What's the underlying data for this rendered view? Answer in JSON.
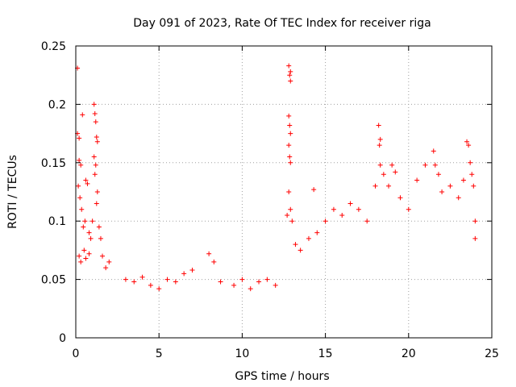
{
  "chart_data": {
    "type": "scatter",
    "title": "Day 091 of 2023, Rate Of TEC Index for receiver riga",
    "xlabel": "GPS time / hours",
    "ylabel": "ROTI / TECUs",
    "xlim": [
      0,
      25
    ],
    "ylim": [
      0,
      0.25
    ],
    "x_ticks": [
      "0",
      "5",
      "10",
      "15",
      "20",
      "25"
    ],
    "y_ticks": [
      "0",
      "0.05",
      "0.1",
      "0.15",
      "0.2",
      "0.25"
    ],
    "grid": true,
    "marker": "+",
    "color": "#ff0000",
    "series": [
      {
        "points": [
          [
            0.1,
            0.231
          ],
          [
            0.2,
            0.171
          ],
          [
            0.1,
            0.175
          ],
          [
            0.2,
            0.152
          ],
          [
            0.3,
            0.148
          ],
          [
            0.4,
            0.191
          ],
          [
            0.15,
            0.13
          ],
          [
            0.25,
            0.12
          ],
          [
            0.35,
            0.11
          ],
          [
            0.45,
            0.095
          ],
          [
            0.55,
            0.1
          ],
          [
            0.6,
            0.135
          ],
          [
            0.7,
            0.132
          ],
          [
            0.8,
            0.09
          ],
          [
            0.9,
            0.085
          ],
          [
            1.0,
            0.1
          ],
          [
            1.1,
            0.2
          ],
          [
            1.15,
            0.192
          ],
          [
            1.2,
            0.185
          ],
          [
            1.25,
            0.172
          ],
          [
            1.3,
            0.168
          ],
          [
            1.1,
            0.155
          ],
          [
            1.2,
            0.148
          ],
          [
            1.15,
            0.14
          ],
          [
            1.3,
            0.125
          ],
          [
            1.25,
            0.115
          ],
          [
            1.4,
            0.095
          ],
          [
            1.5,
            0.085
          ],
          [
            1.6,
            0.07
          ],
          [
            1.8,
            0.06
          ],
          [
            2.0,
            0.065
          ],
          [
            0.2,
            0.07
          ],
          [
            0.3,
            0.065
          ],
          [
            0.5,
            0.075
          ],
          [
            0.6,
            0.068
          ],
          [
            0.8,
            0.072
          ],
          [
            3.0,
            0.05
          ],
          [
            3.5,
            0.048
          ],
          [
            4.0,
            0.052
          ],
          [
            4.5,
            0.045
          ],
          [
            5.0,
            0.042
          ],
          [
            5.5,
            0.05
          ],
          [
            6.0,
            0.048
          ],
          [
            6.5,
            0.055
          ],
          [
            7.0,
            0.058
          ],
          [
            8.0,
            0.072
          ],
          [
            8.3,
            0.065
          ],
          [
            8.7,
            0.048
          ],
          [
            9.5,
            0.045
          ],
          [
            10.0,
            0.05
          ],
          [
            10.5,
            0.042
          ],
          [
            11.0,
            0.048
          ],
          [
            11.5,
            0.05
          ],
          [
            12.0,
            0.045
          ],
          [
            12.8,
            0.233
          ],
          [
            12.9,
            0.228
          ],
          [
            12.85,
            0.225
          ],
          [
            12.9,
            0.22
          ],
          [
            12.8,
            0.19
          ],
          [
            12.85,
            0.182
          ],
          [
            12.9,
            0.175
          ],
          [
            12.8,
            0.165
          ],
          [
            12.85,
            0.155
          ],
          [
            12.9,
            0.15
          ],
          [
            12.8,
            0.125
          ],
          [
            12.9,
            0.11
          ],
          [
            12.7,
            0.105
          ],
          [
            13.0,
            0.1
          ],
          [
            13.2,
            0.08
          ],
          [
            13.5,
            0.075
          ],
          [
            14.0,
            0.085
          ],
          [
            14.3,
            0.127
          ],
          [
            14.5,
            0.09
          ],
          [
            15.0,
            0.1
          ],
          [
            15.5,
            0.11
          ],
          [
            16.0,
            0.105
          ],
          [
            16.5,
            0.115
          ],
          [
            17.0,
            0.11
          ],
          [
            17.5,
            0.1
          ],
          [
            18.0,
            0.13
          ],
          [
            18.2,
            0.182
          ],
          [
            18.3,
            0.17
          ],
          [
            18.25,
            0.165
          ],
          [
            18.3,
            0.148
          ],
          [
            18.5,
            0.14
          ],
          [
            18.8,
            0.13
          ],
          [
            19.0,
            0.148
          ],
          [
            19.2,
            0.142
          ],
          [
            19.5,
            0.12
          ],
          [
            20.0,
            0.11
          ],
          [
            20.5,
            0.135
          ],
          [
            21.0,
            0.148
          ],
          [
            21.5,
            0.16
          ],
          [
            21.6,
            0.148
          ],
          [
            21.8,
            0.14
          ],
          [
            22.0,
            0.125
          ],
          [
            22.5,
            0.13
          ],
          [
            23.0,
            0.12
          ],
          [
            23.3,
            0.135
          ],
          [
            23.5,
            0.168
          ],
          [
            23.6,
            0.165
          ],
          [
            23.7,
            0.15
          ],
          [
            23.8,
            0.14
          ],
          [
            23.9,
            0.13
          ],
          [
            24.0,
            0.1
          ],
          [
            24.0,
            0.085
          ]
        ]
      }
    ]
  }
}
